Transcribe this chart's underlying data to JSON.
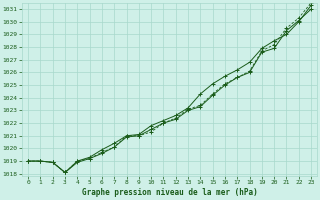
{
  "title": "Graphe pression niveau de la mer (hPa)",
  "xlim": [
    -0.5,
    23.5
  ],
  "ylim": [
    1017.8,
    1031.5
  ],
  "xticks": [
    0,
    1,
    2,
    3,
    4,
    5,
    6,
    7,
    8,
    9,
    10,
    11,
    12,
    13,
    14,
    15,
    16,
    17,
    18,
    19,
    20,
    21,
    22,
    23
  ],
  "yticks": [
    1018,
    1019,
    1020,
    1021,
    1022,
    1023,
    1024,
    1025,
    1026,
    1027,
    1028,
    1029,
    1030,
    1031
  ],
  "background_color": "#cff0e8",
  "grid_color": "#a8d8cc",
  "line_color": "#1a5c1a",
  "tick_color": "#1a5c1a",
  "series1_x": [
    0,
    1,
    2,
    3,
    4,
    5,
    6,
    7,
    8,
    9,
    10,
    11,
    12,
    13,
    14,
    15,
    16,
    17,
    18,
    19,
    20,
    21,
    22,
    23
  ],
  "series1_y": [
    1019.0,
    1019.0,
    1018.9,
    1018.1,
    1018.9,
    1019.2,
    1019.6,
    1020.1,
    1020.9,
    1021.0,
    1021.5,
    1022.0,
    1022.3,
    1023.0,
    1023.3,
    1024.2,
    1025.0,
    1025.6,
    1026.0,
    1027.6,
    1027.9,
    1029.3,
    1030.1,
    1031.0
  ],
  "series2_x": [
    0,
    1,
    2,
    3,
    4,
    5,
    6,
    7,
    8,
    9,
    10,
    11,
    12,
    13,
    14,
    15,
    16,
    17,
    18,
    19,
    20,
    21,
    22,
    23
  ],
  "series2_y": [
    1019.0,
    1019.0,
    1018.9,
    1018.1,
    1019.0,
    1019.3,
    1019.9,
    1020.4,
    1021.0,
    1021.1,
    1021.8,
    1022.2,
    1022.6,
    1023.2,
    1024.3,
    1025.1,
    1025.7,
    1026.2,
    1026.8,
    1027.9,
    1028.5,
    1029.0,
    1030.0,
    1031.3
  ],
  "series3_x": [
    0,
    1,
    2,
    3,
    4,
    5,
    6,
    7,
    8,
    9,
    10,
    11,
    12,
    13,
    14,
    15,
    16,
    17,
    18,
    19,
    20,
    21,
    22,
    23
  ],
  "series3_y": [
    1019.0,
    1019.0,
    1018.9,
    1018.1,
    1019.0,
    1019.2,
    1019.7,
    1020.1,
    1021.0,
    1021.0,
    1021.3,
    1022.0,
    1022.4,
    1023.1,
    1023.4,
    1024.3,
    1025.1,
    1025.6,
    1026.1,
    1027.7,
    1028.2,
    1029.5,
    1030.3,
    1031.5
  ]
}
